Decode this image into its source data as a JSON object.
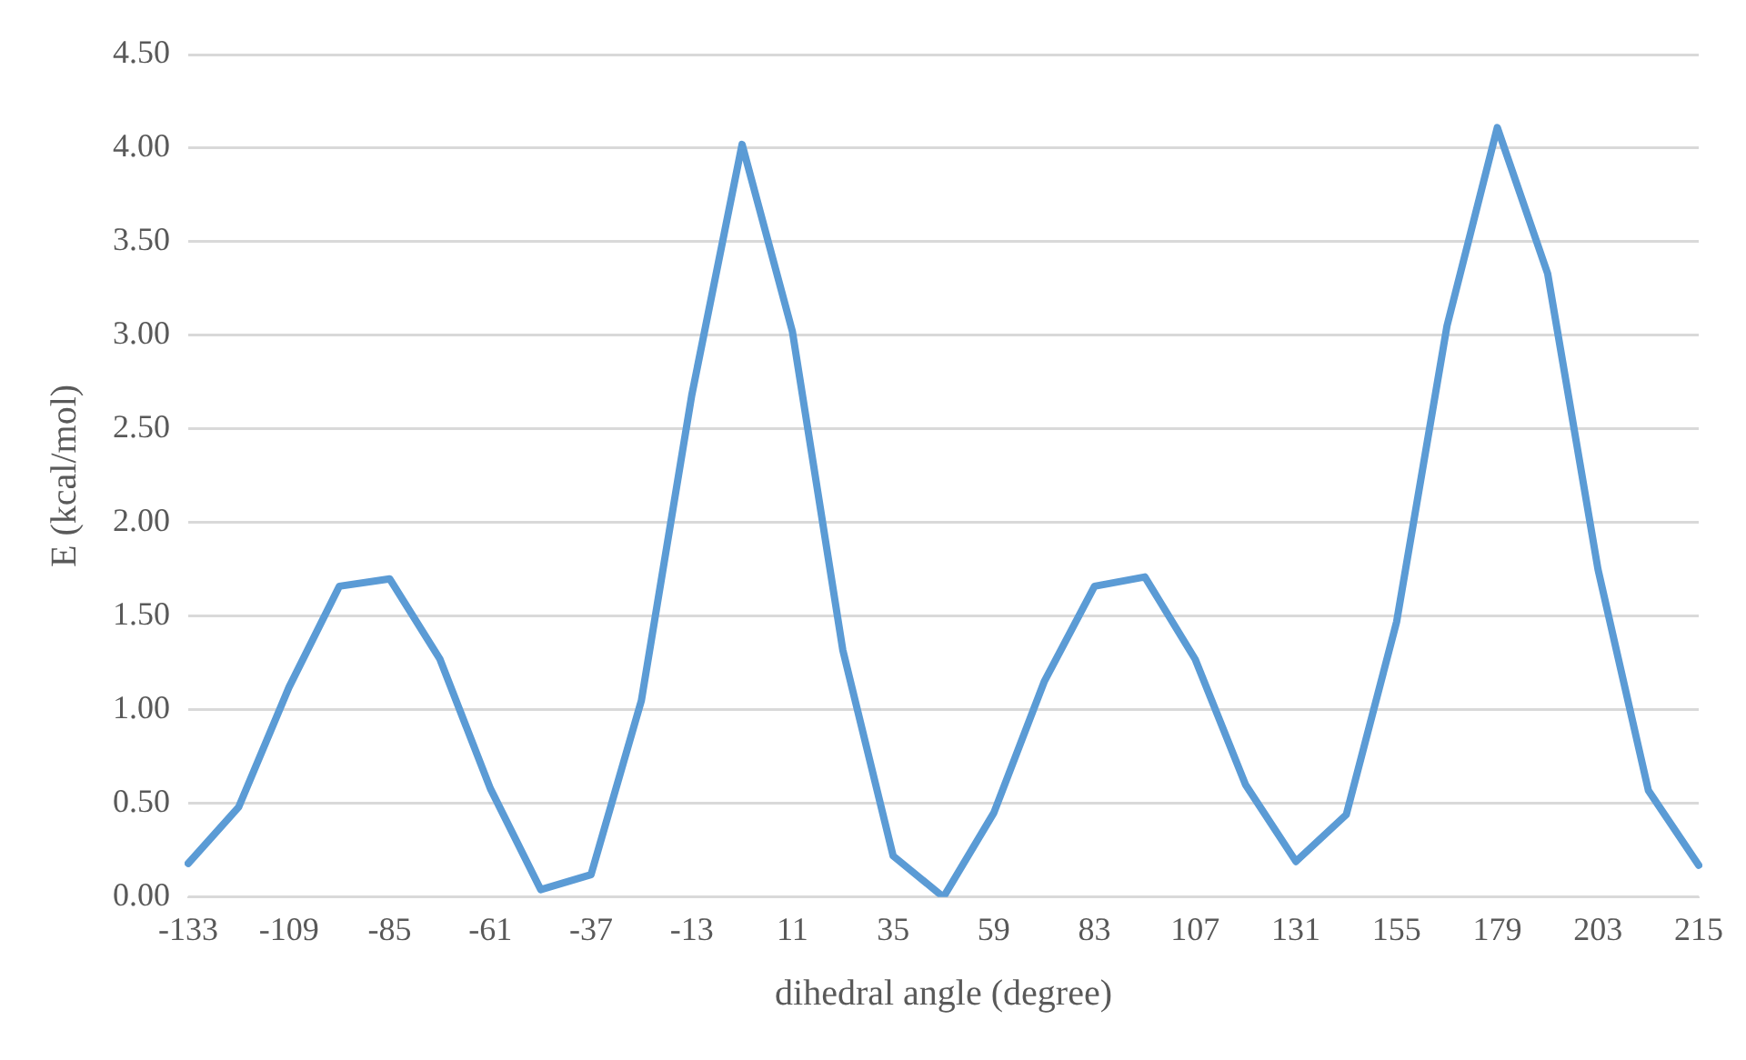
{
  "chart_data": {
    "type": "line",
    "xlabel": "dihedral angle (degree)",
    "ylabel": "E (kcal/mol)",
    "categories": [
      "-133",
      null,
      "-109",
      null,
      "-85",
      null,
      "-61",
      null,
      "-37",
      null,
      "-13",
      null,
      "11",
      null,
      "35",
      null,
      "59",
      null,
      "83",
      null,
      "107",
      null,
      "131",
      null,
      "155",
      null,
      "179",
      null,
      "203",
      null,
      "215"
    ],
    "series": [
      {
        "color": "#5b9bd5",
        "values": [
          0.18,
          0.48,
          1.12,
          1.66,
          1.7,
          1.27,
          0.58,
          0.04,
          0.12,
          1.05,
          2.68,
          4.02,
          3.02,
          1.32,
          0.22,
          0.0,
          0.45,
          1.15,
          1.66,
          1.71,
          1.27,
          0.6,
          0.19,
          0.44,
          1.47,
          3.05,
          4.11,
          3.33,
          1.75,
          0.57,
          0.17
        ]
      }
    ],
    "ylim": [
      0,
      4.5
    ],
    "yticks": [
      {
        "value": 0,
        "label": "0.00"
      },
      {
        "value": 0.5,
        "label": "0.50"
      },
      {
        "value": 1,
        "label": "1.00"
      },
      {
        "value": 1.5,
        "label": "1.50"
      },
      {
        "value": 2,
        "label": "2.00"
      },
      {
        "value": 2.5,
        "label": "2.50"
      },
      {
        "value": 3,
        "label": "3.00"
      },
      {
        "value": 3.5,
        "label": "3.50"
      },
      {
        "value": 4,
        "label": "4.00"
      },
      {
        "value": 4.5,
        "label": "4.50"
      }
    ],
    "grid": "y",
    "legend": false,
    "marker": "none",
    "line_style": "solid"
  }
}
